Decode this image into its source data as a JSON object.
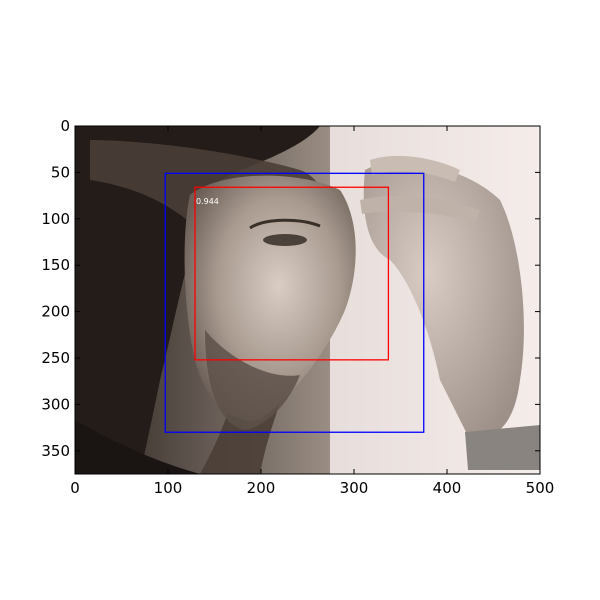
{
  "plot": {
    "x_ticks": [
      "0",
      "100",
      "200",
      "300",
      "400",
      "500"
    ],
    "y_ticks": [
      "0",
      "50",
      "100",
      "150",
      "200",
      "250",
      "300",
      "350"
    ],
    "x_range": [
      0,
      500
    ],
    "y_range": [
      0,
      375
    ],
    "y_axis_inverted": true,
    "background_color": "#ffffff"
  },
  "photo": {
    "subject": "black-and-white portrait of a long-haired man resting his forehead on his hand",
    "tones": {
      "light": "#f3ecea",
      "mid": "#8c8178",
      "dark": "#1d1815"
    }
  },
  "boxes": [
    {
      "id": "box-blue",
      "color": "#0000ff",
      "x1": 97,
      "y1": 51,
      "x2": 375,
      "y2": 330,
      "score": null
    },
    {
      "id": "box-red",
      "color": "#ff0000",
      "x1": 129,
      "y1": 66,
      "x2": 337,
      "y2": 252,
      "score": "0.944"
    }
  ]
}
